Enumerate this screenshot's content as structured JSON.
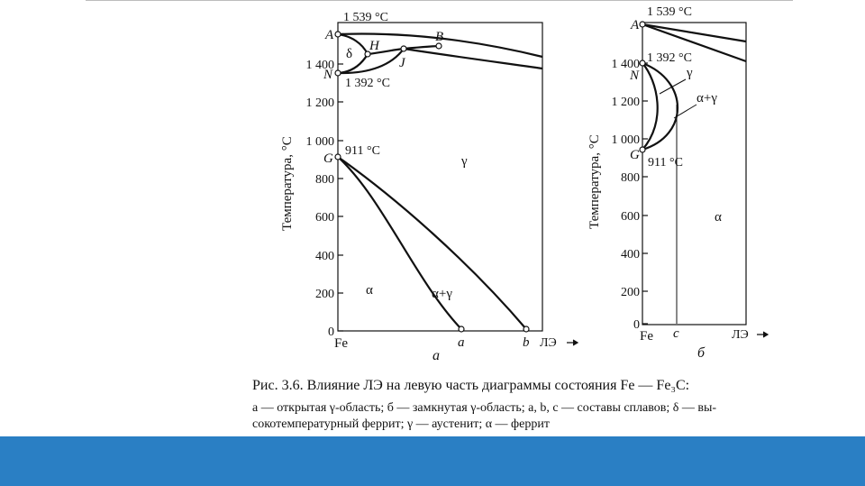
{
  "colors": {
    "footer": "#2a7fc4",
    "ink": "#111111"
  },
  "diagram_a": {
    "y_axis_label": "Температура, °С",
    "y_ticks": [
      "0",
      "200",
      "400",
      "600",
      "800",
      "1 000",
      "1 200",
      "1 400"
    ],
    "x_start": "Fe",
    "x_axis_label": "ЛЭ",
    "panel_label": "а",
    "point_labels": {
      "A": "A",
      "N": "N",
      "G": "G",
      "H": "H",
      "B": "B",
      "J": "J",
      "a": "a",
      "b": "b"
    },
    "temp_1539": "1 539 °С",
    "temp_1392": "1 392 °С",
    "temp_911": "911 °С",
    "region_delta": "δ",
    "region_gamma": "γ",
    "region_alpha": "α",
    "region_alpha_gamma": "α+γ"
  },
  "diagram_b": {
    "y_axis_label": "Температура, °С",
    "y_ticks": [
      "0",
      "200",
      "400",
      "600",
      "800",
      "1 000",
      "1 200",
      "1 400"
    ],
    "x_start": "Fe",
    "x_axis_label": "ЛЭ",
    "panel_label": "б",
    "point_labels": {
      "A": "A",
      "N": "N",
      "G": "G",
      "c": "c"
    },
    "temp_1539": "1 539 °С",
    "temp_1392": "1 392 °С",
    "temp_911": "911 °С",
    "region_gamma": "γ",
    "region_alpha_gamma": "α+γ",
    "region_alpha": "α"
  },
  "caption": {
    "title": "Рис. 3.6. Влияние ЛЭ на левую часть диаграммы состояния Fe — Fe₃C:",
    "line1": "а — открытая γ-область; б — замкнутая γ-область; а, b, с — составы сплавов; δ — вы-",
    "line2": "сокотемпературный феррит; γ — аустенит; α — феррит"
  }
}
